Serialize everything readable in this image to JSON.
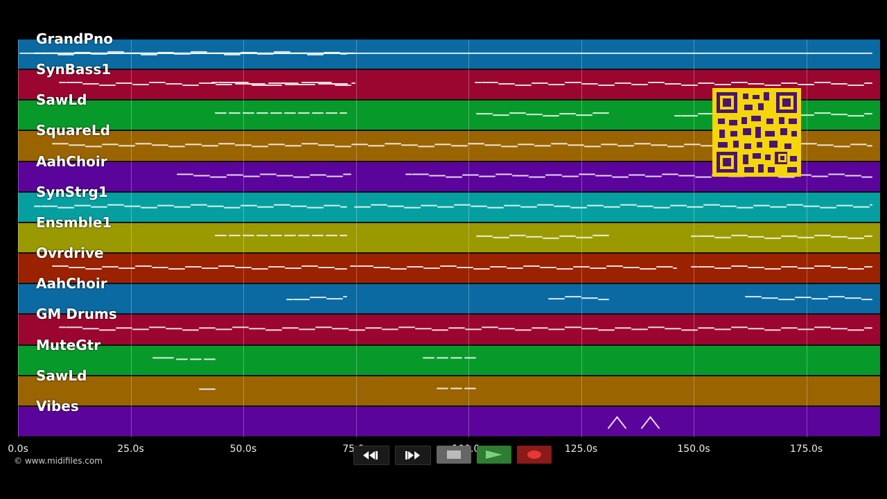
{
  "tracks": [
    {
      "label": "GrandPno",
      "color": "#0a6aa1"
    },
    {
      "label": "SynBass1",
      "color": "#9b0630"
    },
    {
      "label": "SawLd",
      "color": "#079a2a"
    },
    {
      "label": "SquareLd",
      "color": "#9a6400"
    },
    {
      "label": "AahChoir",
      "color": "#5b049b"
    },
    {
      "label": "SynStrg1",
      "color": "#069fa0"
    },
    {
      "label": "Ensmble1",
      "color": "#9a9a00"
    },
    {
      "label": "Ovrdrive",
      "color": "#9a2200"
    },
    {
      "label": "AahChoir",
      "color": "#0a6aa1"
    },
    {
      "label": "GM Drums",
      "color": "#9b0630"
    },
    {
      "label": "MuteGtr",
      "color": "#079a2a"
    },
    {
      "label": "SawLd",
      "color": "#9a6400"
    },
    {
      "label": "Vibes",
      "color": "#5b049b"
    }
  ],
  "timeline": {
    "ticks": [
      "0.0s",
      "25.0s",
      "50.0s",
      "75.0s",
      "100.0s",
      "125.0s",
      "150.0s",
      "175.0s"
    ],
    "max_seconds": 190
  },
  "copyright": "© www.midifiles.com",
  "controls": {
    "rewind_icon": "rewind-icon",
    "forward_icon": "fast-forward-icon",
    "stop_icon": "stop-icon",
    "play_icon": "play-icon",
    "record_icon": "record-icon"
  },
  "qr_icon": "qr-code-icon"
}
